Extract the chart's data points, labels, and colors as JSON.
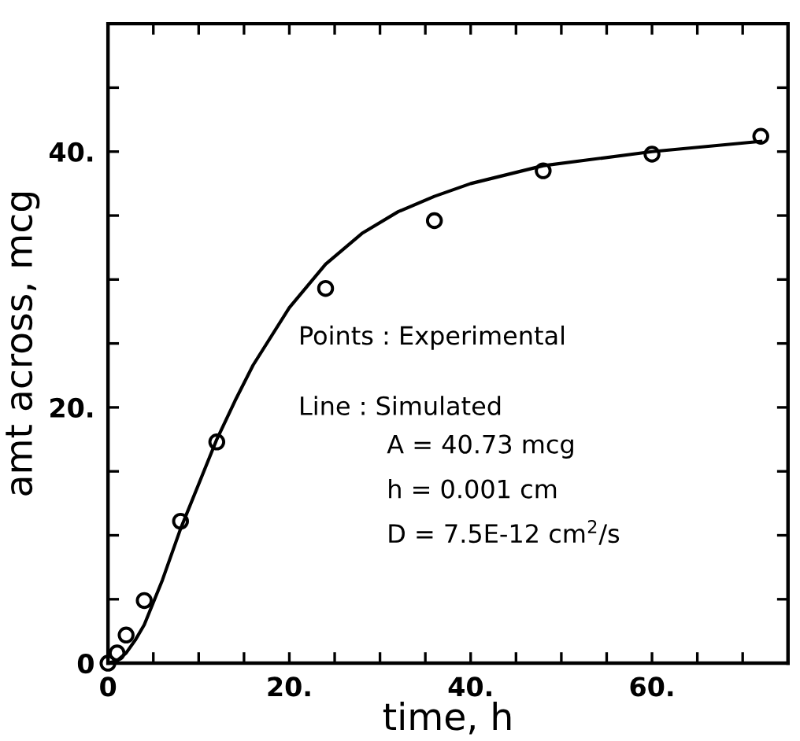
{
  "chart_data": {
    "type": "scatter",
    "xlabel": "time, h",
    "ylabel": "amt across, mcg",
    "xlim": [
      0,
      75
    ],
    "ylim": [
      0,
      50
    ],
    "xticks": [
      0,
      {
        "value": 5,
        "label": null
      },
      {
        "value": 10,
        "label": null
      },
      {
        "value": 15,
        "label": null
      },
      {
        "value": 20,
        "label": "20."
      },
      {
        "value": 25,
        "label": null
      },
      {
        "value": 30,
        "label": null
      },
      {
        "value": 35,
        "label": null
      },
      {
        "value": 40,
        "label": "40."
      },
      {
        "value": 45,
        "label": null
      },
      {
        "value": 50,
        "label": null
      },
      {
        "value": 55,
        "label": null
      },
      {
        "value": 60,
        "label": "60."
      },
      {
        "value": 65,
        "label": null
      },
      {
        "value": 70,
        "label": null
      }
    ],
    "yticks": [
      0,
      {
        "value": 5,
        "label": null
      },
      {
        "value": 10,
        "label": null
      },
      {
        "value": 15,
        "label": null
      },
      {
        "value": 20,
        "label": "20."
      },
      {
        "value": 25,
        "label": null
      },
      {
        "value": 30,
        "label": null
      },
      {
        "value": 35,
        "label": null
      },
      {
        "value": 40,
        "label": "40."
      },
      {
        "value": 45,
        "label": null
      }
    ],
    "series": [
      {
        "marker": "circle",
        "color": "#000000",
        "x": [
          0,
          1,
          2,
          4,
          8,
          12,
          24,
          36,
          48,
          60,
          72
        ],
        "values": [
          0,
          0.8,
          2.2,
          4.9,
          11.1,
          17.3,
          29.3,
          34.6,
          38.5,
          39.8,
          41.2
        ]
      },
      {
        "type": "line",
        "marker": "none",
        "line_style": "solid",
        "color": "#000000",
        "x": [
          0,
          1,
          2,
          3,
          4,
          6,
          8,
          10,
          12,
          14,
          16,
          20,
          24,
          28,
          32,
          36,
          40,
          48,
          60,
          72
        ],
        "values": [
          0,
          0.2,
          0.8,
          1.8,
          3,
          6.5,
          10.5,
          14,
          17.5,
          20.5,
          23.3,
          27.8,
          31.2,
          33.6,
          35.3,
          36.5,
          37.5,
          38.9,
          40,
          40.8
        ]
      }
    ],
    "annotations": [
      "Points : Experimental",
      "Line : Simulated",
      "A = 40.73 mcg",
      "h = 0.001 cm",
      "D = 7.5E-12 cm$^{2}$/s"
    ],
    "grid": false,
    "legend": false
  }
}
